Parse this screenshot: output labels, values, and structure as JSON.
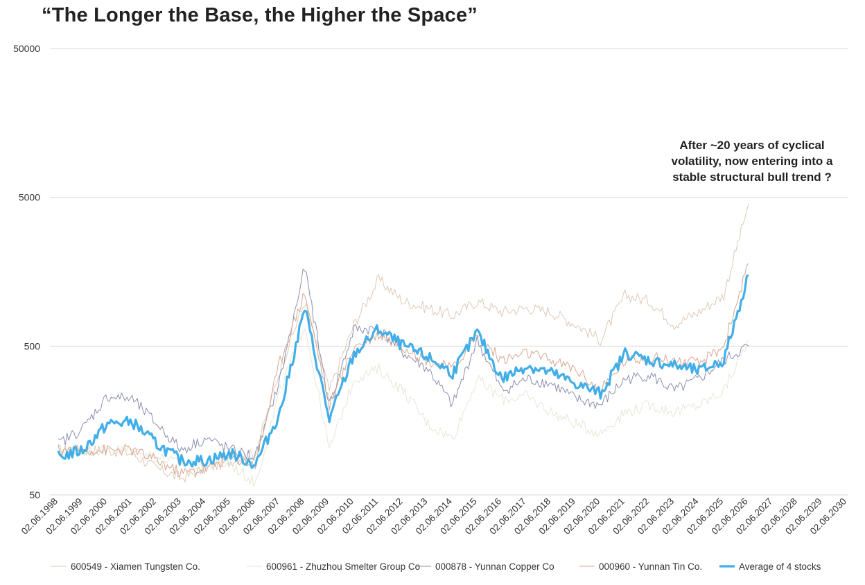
{
  "chart_data": {
    "type": "line",
    "title": "“The Longer the Base, the Higher the Space”",
    "annotation": [
      "After ~20 years of cyclical",
      "volatility, now entering into a",
      "stable structural bull trend ?"
    ],
    "y_scale": "log",
    "ylim": [
      50,
      50000
    ],
    "y_ticks": [
      "50",
      "500",
      "5000",
      "50000"
    ],
    "x_ticks": [
      "02.06.1998",
      "02.06.1999",
      "02.06.2000",
      "02.06.2001",
      "02.06.2002",
      "02.06.2003",
      "02.06.2004",
      "02.06.2005",
      "02.06.2006",
      "02.06.2007",
      "02.06.2008",
      "02.06.2009",
      "02.06.2010",
      "02.06.2011",
      "02.06.2012",
      "02.06.2013",
      "02.06.2014",
      "02.06.2015",
      "02.06.2016",
      "02.06.2017",
      "02.06.2018",
      "02.06.2019",
      "02.06.2020",
      "02.06.2021",
      "02.06.2022",
      "02.06.2023",
      "02.06.2024",
      "02.06.2025",
      "02.06.2026",
      "02.06.2027",
      "02.06.2028",
      "02.06.2029",
      "02.06.2030"
    ],
    "grid": true,
    "legend_position": "bottom",
    "x": [
      "1998",
      "1999",
      "2000",
      "2001",
      "2002",
      "2003",
      "2004",
      "2005",
      "2006",
      "2007",
      "2008",
      "2009",
      "2010",
      "2011",
      "2012",
      "2013",
      "2014",
      "2015",
      "2016",
      "2017",
      "2018",
      "2019",
      "2020",
      "2021",
      "2022",
      "2023",
      "2024",
      "2025",
      "2026"
    ],
    "series": [
      {
        "name": "600549 - Xiamen Tungsten Co.",
        "color": "#ddc9b6",
        "width": 1,
        "values": [
          100,
          100,
          100,
          95,
          75,
          65,
          75,
          85,
          95,
          350,
          1000,
          250,
          700,
          1400,
          1000,
          900,
          800,
          1000,
          850,
          900,
          850,
          700,
          550,
          1100,
          1000,
          700,
          850,
          1100,
          4500
        ]
      },
      {
        "name": "600961 - Zhuzhou Smelter Group Co",
        "color": "#e6e6d7",
        "width": 1,
        "values": [
          100,
          100,
          100,
          100,
          90,
          80,
          80,
          80,
          60,
          250,
          700,
          100,
          300,
          350,
          250,
          150,
          120,
          300,
          220,
          230,
          180,
          150,
          130,
          180,
          200,
          180,
          200,
          250,
          550
        ]
      },
      {
        "name": "000878 - Yunnan Copper Co",
        "color": "#8a8eae",
        "width": 1,
        "values": [
          110,
          140,
          230,
          220,
          150,
          100,
          120,
          100,
          90,
          300,
          1700,
          200,
          650,
          650,
          450,
          350,
          200,
          550,
          250,
          300,
          280,
          220,
          200,
          300,
          320,
          250,
          300,
          400,
          500
        ]
      },
      {
        "name": "000960 - Yunnan Tin Co.",
        "color": "#d6a591",
        "width": 1,
        "values": [
          100,
          100,
          100,
          100,
          85,
          70,
          75,
          90,
          80,
          400,
          1150,
          200,
          500,
          600,
          500,
          400,
          350,
          600,
          400,
          450,
          400,
          350,
          250,
          400,
          420,
          400,
          380,
          500,
          1800
        ]
      },
      {
        "name": "Average of 4 stocks",
        "color": "#41aee8",
        "width": 3.2,
        "values": [
          90,
          100,
          150,
          155,
          110,
          85,
          85,
          95,
          80,
          180,
          900,
          160,
          440,
          650,
          500,
          420,
          330,
          620,
          300,
          370,
          330,
          280,
          240,
          450,
          400,
          370,
          340,
          400,
          1500
        ]
      }
    ]
  }
}
